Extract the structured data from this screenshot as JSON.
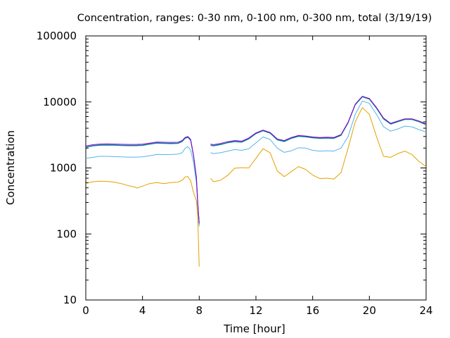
{
  "chart_data": {
    "type": "line",
    "title": "Concentration, ranges: 0-30 nm, 0-100 nm, 0-300 nm, total (3/19/19)",
    "xlabel": "Time [hour]",
    "ylabel": "Concentration",
    "xlim": [
      0,
      24
    ],
    "ylim": [
      10,
      100000
    ],
    "y_scale": "log",
    "grid": false,
    "x_ticks": [
      0,
      4,
      8,
      12,
      16,
      20,
      24
    ],
    "x_tick_labels": [
      "0",
      "4",
      "8",
      "12",
      "16",
      "20",
      "24"
    ],
    "y_ticks": [
      10,
      100,
      1000,
      10000,
      100000
    ],
    "y_tick_labels": [
      "10",
      "100",
      "1000",
      "10000",
      "100000"
    ],
    "series": [
      {
        "color": "#e69f00",
        "points": [
          [
            0,
            580
          ],
          [
            0.5,
            620
          ],
          [
            1,
            630
          ],
          [
            1.5,
            625
          ],
          [
            2,
            610
          ],
          [
            2.5,
            580
          ],
          [
            3,
            540
          ],
          [
            3.5,
            510
          ],
          [
            3.6,
            495
          ],
          [
            4,
            530
          ],
          [
            4.5,
            580
          ],
          [
            5,
            600
          ],
          [
            5.5,
            580
          ],
          [
            6,
            600
          ],
          [
            6.5,
            610
          ],
          [
            6.8,
            650
          ],
          [
            7,
            730
          ],
          [
            7.2,
            740
          ],
          [
            7.4,
            640
          ],
          [
            7.6,
            420
          ],
          [
            7.8,
            320
          ],
          [
            7.9,
            170
          ],
          [
            8.0,
            32
          ],
          null,
          [
            8.8,
            700
          ],
          [
            9,
            620
          ],
          [
            9.5,
            650
          ],
          [
            10,
            770
          ],
          [
            10.5,
            990
          ],
          [
            11,
            1010
          ],
          [
            11.5,
            1000
          ],
          [
            12,
            1400
          ],
          [
            12.5,
            1950
          ],
          [
            13,
            1700
          ],
          [
            13.5,
            900
          ],
          [
            14,
            740
          ],
          [
            14.5,
            880
          ],
          [
            15,
            1050
          ],
          [
            15.5,
            950
          ],
          [
            16,
            780
          ],
          [
            16.5,
            690
          ],
          [
            17,
            700
          ],
          [
            17.5,
            680
          ],
          [
            18,
            850
          ],
          [
            18.5,
            2000
          ],
          [
            19,
            5000
          ],
          [
            19.5,
            8200
          ],
          [
            20,
            6500
          ],
          [
            20.5,
            3000
          ],
          [
            21,
            1500
          ],
          [
            21.5,
            1450
          ],
          [
            22,
            1650
          ],
          [
            22.5,
            1800
          ],
          [
            23,
            1600
          ],
          [
            23.5,
            1250
          ],
          [
            24,
            1050
          ]
        ]
      },
      {
        "color": "#56b4e9",
        "points": [
          [
            0,
            1400
          ],
          [
            0.5,
            1450
          ],
          [
            1,
            1500
          ],
          [
            1.5,
            1500
          ],
          [
            2,
            1480
          ],
          [
            2.5,
            1470
          ],
          [
            3,
            1460
          ],
          [
            3.5,
            1460
          ],
          [
            4,
            1470
          ],
          [
            4.5,
            1530
          ],
          [
            5,
            1600
          ],
          [
            5.5,
            1590
          ],
          [
            6,
            1600
          ],
          [
            6.5,
            1620
          ],
          [
            6.8,
            1700
          ],
          [
            7,
            1980
          ],
          [
            7.2,
            2100
          ],
          [
            7.4,
            1850
          ],
          [
            7.6,
            1200
          ],
          [
            7.8,
            600
          ],
          [
            7.9,
            260
          ],
          [
            8.0,
            130
          ],
          null,
          [
            8.8,
            1700
          ],
          [
            9,
            1650
          ],
          [
            9.5,
            1700
          ],
          [
            10,
            1800
          ],
          [
            10.5,
            1900
          ],
          [
            11,
            1850
          ],
          [
            11.5,
            1950
          ],
          [
            12,
            2400
          ],
          [
            12.5,
            2950
          ],
          [
            13,
            2700
          ],
          [
            13.5,
            2000
          ],
          [
            14,
            1720
          ],
          [
            14.5,
            1820
          ],
          [
            15,
            2020
          ],
          [
            15.5,
            2000
          ],
          [
            16,
            1850
          ],
          [
            16.5,
            1800
          ],
          [
            17,
            1820
          ],
          [
            17.5,
            1800
          ],
          [
            18,
            2000
          ],
          [
            18.5,
            3000
          ],
          [
            19,
            6500
          ],
          [
            19.5,
            10300
          ],
          [
            20,
            9500
          ],
          [
            20.5,
            6500
          ],
          [
            21,
            4200
          ],
          [
            21.5,
            3600
          ],
          [
            22,
            3900
          ],
          [
            22.5,
            4300
          ],
          [
            23,
            4200
          ],
          [
            23.5,
            3800
          ],
          [
            24,
            3500
          ]
        ]
      },
      {
        "color": "#009e73",
        "points": [
          [
            0,
            2050
          ],
          [
            0.5,
            2150
          ],
          [
            1,
            2200
          ],
          [
            1.5,
            2210
          ],
          [
            2,
            2200
          ],
          [
            2.5,
            2180
          ],
          [
            3,
            2170
          ],
          [
            3.5,
            2170
          ],
          [
            4,
            2190
          ],
          [
            4.5,
            2280
          ],
          [
            5,
            2370
          ],
          [
            5.5,
            2350
          ],
          [
            6,
            2330
          ],
          [
            6.5,
            2350
          ],
          [
            6.8,
            2500
          ],
          [
            7,
            2800
          ],
          [
            7.2,
            2900
          ],
          [
            7.4,
            2600
          ],
          [
            7.6,
            1500
          ],
          [
            7.8,
            700
          ],
          [
            7.9,
            280
          ],
          [
            8.0,
            140
          ],
          null,
          [
            8.8,
            2200
          ],
          [
            9,
            2150
          ],
          [
            9.5,
            2250
          ],
          [
            10,
            2400
          ],
          [
            10.5,
            2500
          ],
          [
            11,
            2450
          ],
          [
            11.5,
            2750
          ],
          [
            12,
            3300
          ],
          [
            12.5,
            3650
          ],
          [
            13,
            3350
          ],
          [
            13.5,
            2650
          ],
          [
            14,
            2500
          ],
          [
            14.5,
            2800
          ],
          [
            15,
            3000
          ],
          [
            15.5,
            2950
          ],
          [
            16,
            2850
          ],
          [
            16.5,
            2800
          ],
          [
            17,
            2820
          ],
          [
            17.5,
            2800
          ],
          [
            18,
            3100
          ],
          [
            18.5,
            4800
          ],
          [
            19,
            9000
          ],
          [
            19.5,
            11900
          ],
          [
            20,
            11000
          ],
          [
            20.5,
            8000
          ],
          [
            21,
            5500
          ],
          [
            21.5,
            4600
          ],
          [
            22,
            5000
          ],
          [
            22.5,
            5400
          ],
          [
            23,
            5400
          ],
          [
            23.5,
            5000
          ],
          [
            24,
            4500
          ]
        ]
      },
      {
        "color": "#0072b2",
        "points": [
          [
            0,
            2080
          ],
          [
            0.5,
            2180
          ],
          [
            1,
            2230
          ],
          [
            1.5,
            2240
          ],
          [
            2,
            2230
          ],
          [
            2.5,
            2210
          ],
          [
            3,
            2200
          ],
          [
            3.5,
            2200
          ],
          [
            4,
            2220
          ],
          [
            4.5,
            2310
          ],
          [
            5,
            2400
          ],
          [
            5.5,
            2380
          ],
          [
            6,
            2360
          ],
          [
            6.5,
            2380
          ],
          [
            6.8,
            2530
          ],
          [
            7,
            2840
          ],
          [
            7.2,
            2940
          ],
          [
            7.4,
            2640
          ],
          [
            7.6,
            1520
          ],
          [
            7.8,
            720
          ],
          [
            7.9,
            290
          ],
          [
            8.0,
            145
          ],
          null,
          [
            8.8,
            2230
          ],
          [
            9,
            2180
          ],
          [
            9.5,
            2280
          ],
          [
            10,
            2430
          ],
          [
            10.5,
            2530
          ],
          [
            11,
            2480
          ],
          [
            11.5,
            2790
          ],
          [
            12,
            3340
          ],
          [
            12.5,
            3700
          ],
          [
            13,
            3400
          ],
          [
            13.5,
            2690
          ],
          [
            14,
            2540
          ],
          [
            14.5,
            2840
          ],
          [
            15,
            3050
          ],
          [
            15.5,
            3000
          ],
          [
            16,
            2890
          ],
          [
            16.5,
            2840
          ],
          [
            17,
            2860
          ],
          [
            17.5,
            2840
          ],
          [
            18,
            3150
          ],
          [
            18.5,
            4880
          ],
          [
            19,
            9150
          ],
          [
            19.5,
            12100
          ],
          [
            20,
            11200
          ],
          [
            20.5,
            8150
          ],
          [
            21,
            5600
          ],
          [
            21.5,
            4680
          ],
          [
            22,
            5080
          ],
          [
            22.5,
            5480
          ],
          [
            23,
            5480
          ],
          [
            23.5,
            5080
          ],
          [
            24,
            4580
          ]
        ]
      },
      {
        "color": "#9400d3",
        "points": [
          [
            0,
            2150
          ],
          [
            0.5,
            2250
          ],
          [
            1,
            2300
          ],
          [
            1.5,
            2310
          ],
          [
            2,
            2300
          ],
          [
            2.5,
            2280
          ],
          [
            3,
            2270
          ],
          [
            3.5,
            2270
          ],
          [
            4,
            2290
          ],
          [
            4.5,
            2380
          ],
          [
            5,
            2470
          ],
          [
            5.5,
            2450
          ],
          [
            6,
            2430
          ],
          [
            6.5,
            2450
          ],
          [
            6.8,
            2600
          ],
          [
            7,
            2900
          ],
          [
            7.2,
            3000
          ],
          [
            7.4,
            2700
          ],
          [
            7.6,
            1550
          ],
          [
            7.8,
            730
          ],
          [
            7.9,
            295
          ],
          [
            8.0,
            148
          ],
          null,
          [
            8.8,
            2300
          ],
          [
            9,
            2250
          ],
          [
            9.5,
            2350
          ],
          [
            10,
            2500
          ],
          [
            10.5,
            2600
          ],
          [
            11,
            2550
          ],
          [
            11.5,
            2850
          ],
          [
            12,
            3400
          ],
          [
            12.5,
            3750
          ],
          [
            13,
            3450
          ],
          [
            13.5,
            2750
          ],
          [
            14,
            2600
          ],
          [
            14.5,
            2900
          ],
          [
            15,
            3100
          ],
          [
            15.5,
            3050
          ],
          [
            16,
            2950
          ],
          [
            16.5,
            2900
          ],
          [
            17,
            2920
          ],
          [
            17.5,
            2900
          ],
          [
            18,
            3200
          ],
          [
            18.5,
            4950
          ],
          [
            19,
            9250
          ],
          [
            19.5,
            12200
          ],
          [
            20,
            11300
          ],
          [
            20.5,
            8250
          ],
          [
            21,
            5700
          ],
          [
            21.5,
            4750
          ],
          [
            22,
            5150
          ],
          [
            22.5,
            5550
          ],
          [
            23,
            5550
          ],
          [
            23.5,
            5150
          ],
          [
            24,
            4650
          ]
        ]
      }
    ]
  }
}
